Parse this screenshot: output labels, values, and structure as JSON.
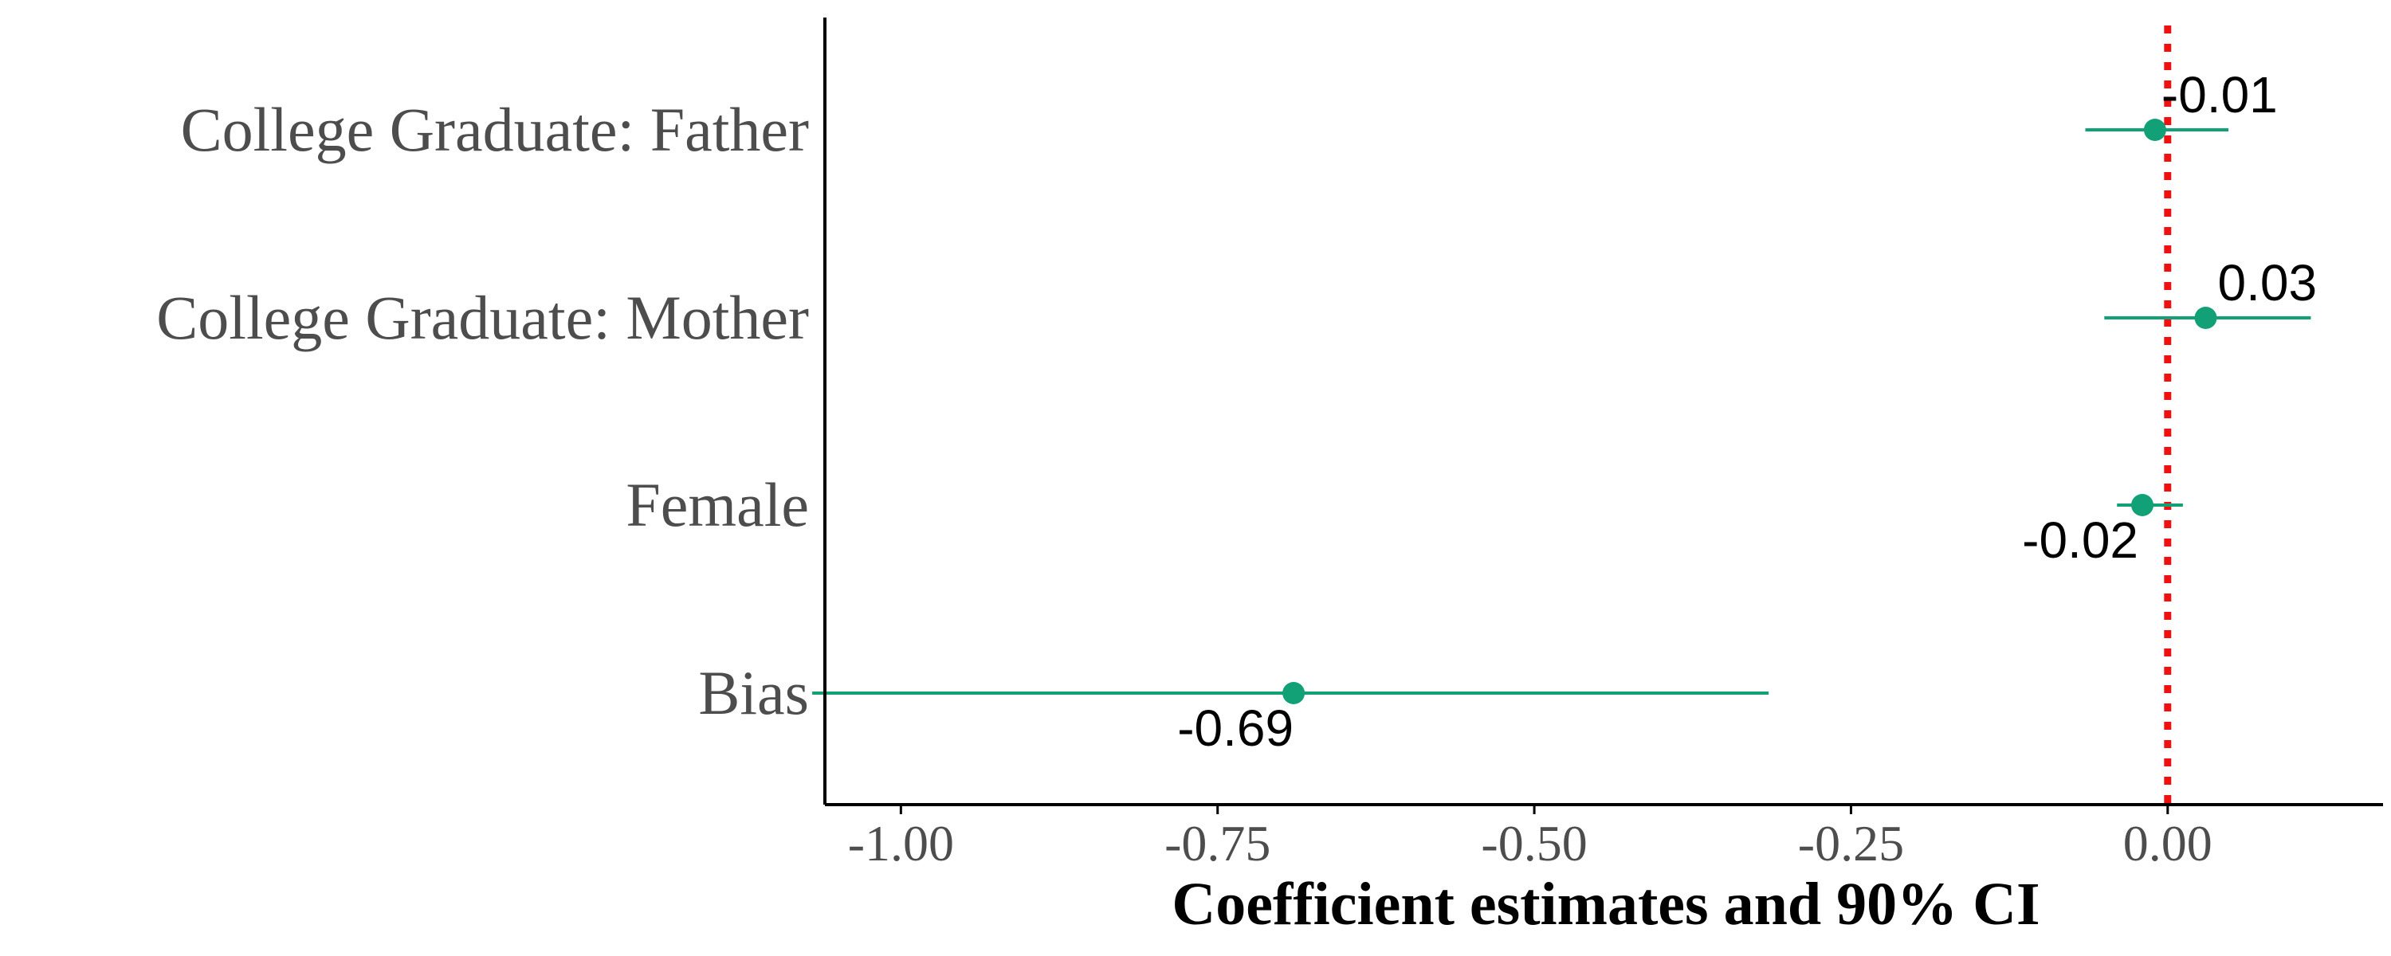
{
  "chart_data": {
    "type": "scatter",
    "subtype": "coefficient-plot",
    "title": "",
    "xlabel": "Coefficient estimates and 90% CI",
    "ylabel": "",
    "xlim": [
      -1.06,
      0.17
    ],
    "x_ticks": [
      -1.0,
      -0.75,
      -0.5,
      -0.25,
      0.0
    ],
    "x_tick_labels": [
      "-1.00",
      "-0.75",
      "-0.50",
      "-0.25",
      "0.00"
    ],
    "categories": [
      "College Graduate: Father",
      "College Graduate: Mother",
      "Female",
      "Bias"
    ],
    "estimates": [
      -0.01,
      0.03,
      -0.02,
      -0.69
    ],
    "ci_low": [
      -0.065,
      -0.05,
      -0.04,
      -1.07
    ],
    "ci_high": [
      0.048,
      0.113,
      0.012,
      -0.315
    ],
    "point_labels": [
      "-0.01",
      "0.03",
      "-0.02",
      "-0.69"
    ],
    "reference_line": {
      "x": 0,
      "style": "dotted",
      "color": "#ee1111"
    },
    "grid": false,
    "legend": "none",
    "colors": {
      "point": "#12a077",
      "errorbar": "#12a077",
      "axis": "#000000"
    }
  }
}
